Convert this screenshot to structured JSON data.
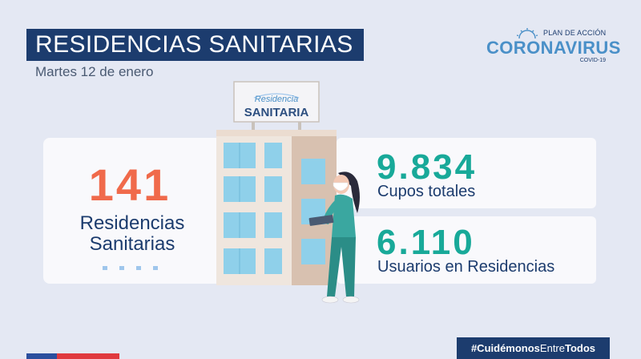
{
  "header": {
    "title": "RESIDENCIAS SANITARIAS",
    "date": "Martes 12 de enero"
  },
  "logo": {
    "top_text": "PLAN DE ACCIÓN",
    "main_text": "CORONAVIRUS",
    "sub_text": "COVID-19",
    "icon": "sun-arc-icon"
  },
  "sign": {
    "line1": "Residencia",
    "line2": "SANITARIA"
  },
  "stats": {
    "residencias": {
      "value": "141",
      "label_line1": "Residencias",
      "label_line2": "Sanitarias"
    },
    "cupos": {
      "value": "9.834",
      "label": "Cupos totales"
    },
    "usuarios": {
      "value": "6.110",
      "label": "Usuarios en Residencias"
    }
  },
  "hashtag": {
    "part1": "#Cuidémonos",
    "part2": "Entre",
    "part3": "Todos"
  },
  "colors": {
    "navy": "#1c3c6e",
    "background": "#e4e8f3",
    "orange": "#f06a4b",
    "teal": "#18a999",
    "light_blue": "#4a90c8",
    "flag_blue": "#2b4f9e",
    "flag_red": "#e03a3e"
  }
}
